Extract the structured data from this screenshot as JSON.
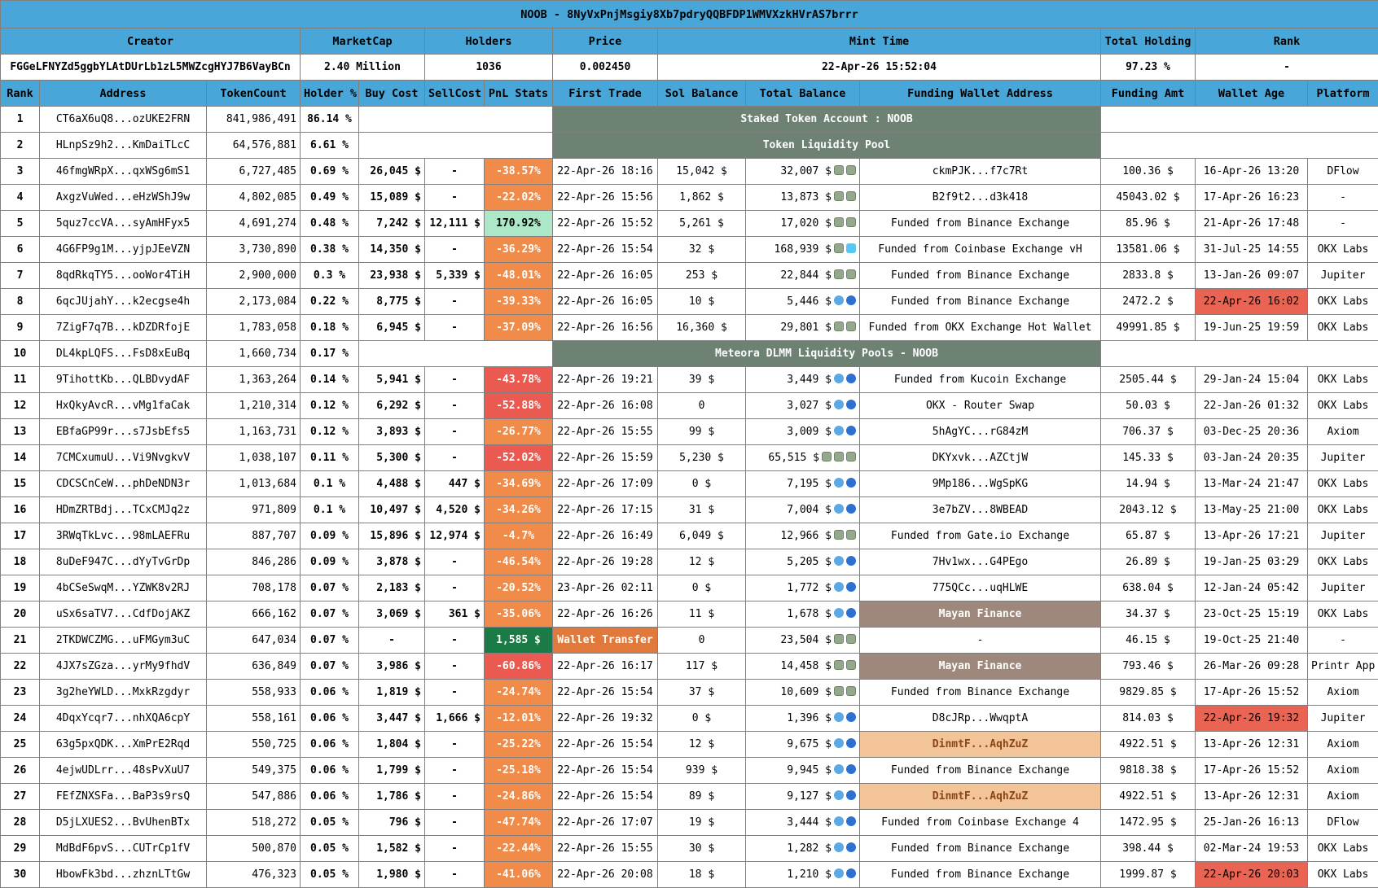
{
  "title": "NOOB - 8NyVxPnjMsgiy8Xb7pdryQQBFDP1WMVXzkHVrAS7brrr",
  "summary": {
    "headers": [
      "Creator",
      "MarketCap",
      "Holders",
      "Price",
      "Mint Time",
      "Total Holding",
      "Rank"
    ],
    "values": [
      "FGGeLFNYZd5ggbYLAtDUrLb1zL5MWZcgHYJ7B6VayBCn",
      "2.40 Million",
      "1036",
      "0.002450",
      "22-Apr-26 15:52:04",
      "97.23 %",
      "-"
    ]
  },
  "columns": [
    "Rank",
    "Address",
    "TokenCount",
    "Holder %",
    "Buy Cost",
    "SellCost",
    "PnL Stats",
    "First Trade",
    "Sol Balance",
    "Total Balance",
    "Funding Wallet Address",
    "Funding Amt",
    "Wallet Age",
    "Platform"
  ],
  "colors": {
    "header_blue": "#48a6d8",
    "section_green": "#6e8274",
    "pnl_orange": "#f08b49",
    "pnl_red": "#eb5a50",
    "pnl_green_light": "#ace8c8",
    "pnl_green_dark": "#1a7b46",
    "transfer_orange": "#e0793b",
    "wallet_brown": "#9e887b",
    "wallet_tan": "#f3c497",
    "age_red": "#ea6454"
  },
  "icon_legend": {
    "cash": "cash-note-icon",
    "fish": "fish-icon",
    "whale": "whale-icon",
    "ice": "ice-cube-icon"
  },
  "rows": [
    {
      "rank": "1",
      "address": "CT6aX6uQ8...ozUKE2FRN",
      "tokens": "841,986,491",
      "pct": "86.14 %",
      "section": "Staked Token Account : NOOB"
    },
    {
      "rank": "2",
      "address": "HLnpSz9h2...KmDaiTLcC",
      "tokens": "64,576,881",
      "pct": "6.61 %",
      "section": "Token Liquidity Pool"
    },
    {
      "rank": "3",
      "address": "46fmgWRpX...qxWSg6mS1",
      "tokens": "6,727,485",
      "pct": "0.69 %",
      "buy": "26,045 $",
      "sell": "-",
      "pnl": "-38.57%",
      "pnl_style": "orange",
      "trade": "22-Apr-26 18:16",
      "sol": "15,042 $",
      "total": "32,007 $",
      "icons": [
        "cash",
        "cash"
      ],
      "wallet": "ckmPJK...f7c7Rt",
      "amt": "100.36 $",
      "age": "16-Apr-26 13:20",
      "platform": "DFlow"
    },
    {
      "rank": "4",
      "address": "AxgzVuWed...eHzWShJ9w",
      "tokens": "4,802,085",
      "pct": "0.49 %",
      "buy": "15,089 $",
      "sell": "-",
      "pnl": "-22.02%",
      "pnl_style": "orange",
      "trade": "22-Apr-26 15:56",
      "sol": "1,862 $",
      "total": "13,873 $",
      "icons": [
        "cash",
        "cash"
      ],
      "wallet": "B2f9t2...d3k418",
      "amt": "45043.02 $",
      "age": "17-Apr-26 16:23",
      "platform": "-"
    },
    {
      "rank": "5",
      "address": "5quz7ccVA...syAmHFyx5",
      "tokens": "4,691,274",
      "pct": "0.48 %",
      "buy": "7,242 $",
      "sell": "12,111 $",
      "pnl": "170.92%",
      "pnl_style": "green-light",
      "trade": "22-Apr-26 15:52",
      "sol": "5,261 $",
      "total": "17,020 $",
      "icons": [
        "cash",
        "cash"
      ],
      "wallet": "Funded from Binance Exchange",
      "amt": "85.96 $",
      "age": "21-Apr-26 17:48",
      "platform": "-"
    },
    {
      "rank": "6",
      "address": "4G6FP9g1M...yjpJEeVZN",
      "tokens": "3,730,890",
      "pct": "0.38 %",
      "buy": "14,350 $",
      "sell": "-",
      "pnl": "-36.29%",
      "pnl_style": "orange",
      "trade": "22-Apr-26 15:54",
      "sol": "32 $",
      "total": "168,939 $",
      "icons": [
        "cash",
        "ice"
      ],
      "wallet": "Funded from Coinbase Exchange vH",
      "amt": "13581.06 $",
      "age": "31-Jul-25 14:55",
      "platform": "OKX Labs"
    },
    {
      "rank": "7",
      "address": "8qdRkqTY5...ooWor4TiH",
      "tokens": "2,900,000",
      "pct": "0.3 %",
      "buy": "23,938 $",
      "sell": "5,339 $",
      "pnl": "-48.01%",
      "pnl_style": "orange",
      "trade": "22-Apr-26 16:05",
      "sol": "253 $",
      "total": "22,844 $",
      "icons": [
        "cash",
        "cash"
      ],
      "wallet": "Funded from Binance Exchange",
      "amt": "2833.8 $",
      "age": "13-Jan-26 09:07",
      "platform": "Jupiter"
    },
    {
      "rank": "8",
      "address": "6qcJUjahY...k2ecgse4h",
      "tokens": "2,173,084",
      "pct": "0.22 %",
      "buy": "8,775 $",
      "sell": "-",
      "pnl": "-39.33%",
      "pnl_style": "orange",
      "trade": "22-Apr-26 16:05",
      "sol": "10 $",
      "total": "5,446 $",
      "icons": [
        "fish",
        "whale"
      ],
      "wallet": "Funded from Binance Exchange",
      "amt": "2472.2 $",
      "age": "22-Apr-26 16:02",
      "age_style": "red",
      "platform": "OKX Labs"
    },
    {
      "rank": "9",
      "address": "7ZigF7q7B...kDZDRfojE",
      "tokens": "1,783,058",
      "pct": "0.18 %",
      "buy": "6,945 $",
      "sell": "-",
      "pnl": "-37.09%",
      "pnl_style": "orange",
      "trade": "22-Apr-26 16:56",
      "sol": "16,360 $",
      "total": "29,801 $",
      "icons": [
        "cash",
        "cash"
      ],
      "wallet": "Funded from OKX Exchange Hot Wallet",
      "amt": "49991.85 $",
      "age": "19-Jun-25 19:59",
      "platform": "OKX Labs"
    },
    {
      "rank": "10",
      "address": "DL4kpLQFS...FsD8xEuBq",
      "tokens": "1,660,734",
      "pct": "0.17 %",
      "section": "Meteora DLMM Liquidity Pools - NOOB"
    },
    {
      "rank": "11",
      "address": "9TihottKb...QLBDvydAF",
      "tokens": "1,363,264",
      "pct": "0.14 %",
      "buy": "5,941 $",
      "sell": "-",
      "pnl": "-43.78%",
      "pnl_style": "red",
      "trade": "22-Apr-26 19:21",
      "sol": "39 $",
      "total": "3,449 $",
      "icons": [
        "fish",
        "whale"
      ],
      "wallet": "Funded from Kucoin Exchange",
      "amt": "2505.44 $",
      "age": "29-Jan-24 15:04",
      "platform": "OKX Labs"
    },
    {
      "rank": "12",
      "address": "HxQkyAvcR...vMg1faCak",
      "tokens": "1,210,314",
      "pct": "0.12 %",
      "buy": "6,292 $",
      "sell": "-",
      "pnl": "-52.88%",
      "pnl_style": "red",
      "trade": "22-Apr-26 16:08",
      "sol": "0",
      "total": "3,027 $",
      "icons": [
        "fish",
        "whale"
      ],
      "wallet": "OKX - Router Swap",
      "amt": "50.03 $",
      "age": "22-Jan-26 01:32",
      "platform": "OKX Labs"
    },
    {
      "rank": "13",
      "address": "EBfaGP99r...s7JsbEfs5",
      "tokens": "1,163,731",
      "pct": "0.12 %",
      "buy": "3,893 $",
      "sell": "-",
      "pnl": "-26.77%",
      "pnl_style": "orange",
      "trade": "22-Apr-26 15:55",
      "sol": "99 $",
      "total": "3,009 $",
      "icons": [
        "fish",
        "whale"
      ],
      "wallet": "5hAgYC...rG84zM",
      "amt": "706.37 $",
      "age": "03-Dec-25 20:36",
      "platform": "Axiom"
    },
    {
      "rank": "14",
      "address": "7CMCxumuU...Vi9NvgkvV",
      "tokens": "1,038,107",
      "pct": "0.11 %",
      "buy": "5,300 $",
      "sell": "-",
      "pnl": "-52.02%",
      "pnl_style": "red",
      "trade": "22-Apr-26 15:59",
      "sol": "5,230 $",
      "total": "65,515 $",
      "icons": [
        "cash",
        "cash",
        "cash"
      ],
      "wallet": "DKYxvk...AZCtjW",
      "amt": "145.33 $",
      "age": "03-Jan-24 20:35",
      "platform": "Jupiter"
    },
    {
      "rank": "15",
      "address": "CDCSCnCeW...phDeNDN3r",
      "tokens": "1,013,684",
      "pct": "0.1 %",
      "buy": "4,488 $",
      "sell": "447 $",
      "pnl": "-34.69%",
      "pnl_style": "orange",
      "trade": "22-Apr-26 17:09",
      "sol": "0 $",
      "total": "7,195 $",
      "icons": [
        "fish",
        "whale"
      ],
      "wallet": "9Mp186...WgSpKG",
      "amt": "14.94 $",
      "age": "13-Mar-24 21:47",
      "platform": "OKX Labs"
    },
    {
      "rank": "16",
      "address": "HDmZRTBdj...TCxCMJq2z",
      "tokens": "971,809",
      "pct": "0.1 %",
      "buy": "10,497 $",
      "sell": "4,520 $",
      "pnl": "-34.26%",
      "pnl_style": "orange",
      "trade": "22-Apr-26 17:15",
      "sol": "31 $",
      "total": "7,004 $",
      "icons": [
        "fish",
        "whale"
      ],
      "wallet": "3e7bZV...8WBEAD",
      "amt": "2043.12 $",
      "age": "13-May-25 21:00",
      "platform": "OKX Labs"
    },
    {
      "rank": "17",
      "address": "3RWqTkLvc...98mLAEFRu",
      "tokens": "887,707",
      "pct": "0.09 %",
      "buy": "15,896 $",
      "sell": "12,974 $",
      "pnl": "-4.7%",
      "pnl_style": "orange",
      "trade": "22-Apr-26 16:49",
      "sol": "6,049 $",
      "total": "12,966 $",
      "icons": [
        "cash",
        "cash"
      ],
      "wallet": "Funded from Gate.io Exchange",
      "amt": "65.87 $",
      "age": "13-Apr-26 17:21",
      "platform": "Jupiter"
    },
    {
      "rank": "18",
      "address": "8uDeF947C...dYyTvGrDp",
      "tokens": "846,286",
      "pct": "0.09 %",
      "buy": "3,878 $",
      "sell": "-",
      "pnl": "-46.54%",
      "pnl_style": "orange",
      "trade": "22-Apr-26 19:28",
      "sol": "12 $",
      "total": "5,205 $",
      "icons": [
        "fish",
        "whale"
      ],
      "wallet": "7Hv1wx...G4PEgo",
      "amt": "26.89 $",
      "age": "19-Jan-25 03:29",
      "platform": "OKX Labs"
    },
    {
      "rank": "19",
      "address": "4bCSeSwqM...YZWK8v2RJ",
      "tokens": "708,178",
      "pct": "0.07 %",
      "buy": "2,183 $",
      "sell": "-",
      "pnl": "-20.52%",
      "pnl_style": "orange",
      "trade": "23-Apr-26 02:11",
      "sol": "0 $",
      "total": "1,772 $",
      "icons": [
        "fish",
        "whale"
      ],
      "wallet": "775QCc...uqHLWE",
      "amt": "638.04 $",
      "age": "12-Jan-24 05:42",
      "platform": "Jupiter"
    },
    {
      "rank": "20",
      "address": "uSx6saTV7...CdfDojAKZ",
      "tokens": "666,162",
      "pct": "0.07 %",
      "buy": "3,069 $",
      "sell": "361 $",
      "pnl": "-35.06%",
      "pnl_style": "orange",
      "trade": "22-Apr-26 16:26",
      "sol": "11 $",
      "total": "1,678 $",
      "icons": [
        "fish",
        "whale"
      ],
      "wallet": "Mayan Finance",
      "wallet_style": "brown",
      "amt": "34.37 $",
      "age": "23-Oct-25 15:19",
      "platform": "OKX Labs"
    },
    {
      "rank": "21",
      "address": "2TKDWCZMG...uFMGym3uC",
      "tokens": "647,034",
      "pct": "0.07 %",
      "buy": "-",
      "sell": "-",
      "pnl": "1,585 $",
      "pnl_style": "green-dark",
      "trade": "Wallet Transfer",
      "trade_style": "orange",
      "sol": "0",
      "total": "23,504 $",
      "icons": [
        "cash",
        "cash"
      ],
      "wallet": "-",
      "amt": "46.15 $",
      "age": "19-Oct-25 21:40",
      "platform": "-"
    },
    {
      "rank": "22",
      "address": "4JX7sZGza...yrMy9fhdV",
      "tokens": "636,849",
      "pct": "0.07 %",
      "buy": "3,986 $",
      "sell": "-",
      "pnl": "-60.86%",
      "pnl_style": "red",
      "trade": "22-Apr-26 16:17",
      "sol": "117 $",
      "total": "14,458 $",
      "icons": [
        "cash",
        "cash"
      ],
      "wallet": "Mayan Finance",
      "wallet_style": "brown",
      "amt": "793.46 $",
      "age": "26-Mar-26 09:28",
      "platform": "Printr App"
    },
    {
      "rank": "23",
      "address": "3g2heYWLD...MxkRzgdyr",
      "tokens": "558,933",
      "pct": "0.06 %",
      "buy": "1,819 $",
      "sell": "-",
      "pnl": "-24.74%",
      "pnl_style": "orange",
      "trade": "22-Apr-26 15:54",
      "sol": "37 $",
      "total": "10,609 $",
      "icons": [
        "cash",
        "cash"
      ],
      "wallet": "Funded from Binance Exchange",
      "amt": "9829.85 $",
      "age": "17-Apr-26 15:52",
      "platform": "Axiom"
    },
    {
      "rank": "24",
      "address": "4DqxYcqr7...nhXQA6cpY",
      "tokens": "558,161",
      "pct": "0.06 %",
      "buy": "3,447 $",
      "sell": "1,666 $",
      "pnl": "-12.01%",
      "pnl_style": "orange",
      "trade": "22-Apr-26 19:32",
      "sol": "0 $",
      "total": "1,396 $",
      "icons": [
        "fish",
        "whale"
      ],
      "wallet": "D8cJRp...WwqptA",
      "amt": "814.03 $",
      "age": "22-Apr-26 19:32",
      "age_style": "red",
      "platform": "Jupiter"
    },
    {
      "rank": "25",
      "address": "63g5pxQDK...XmPrE2Rqd",
      "tokens": "550,725",
      "pct": "0.06 %",
      "buy": "1,804 $",
      "sell": "-",
      "pnl": "-25.22%",
      "pnl_style": "orange",
      "trade": "22-Apr-26 15:54",
      "sol": "12 $",
      "total": "9,675 $",
      "icons": [
        "fish",
        "whale"
      ],
      "wallet": "DinmtF...AqhZuZ",
      "wallet_style": "tan",
      "amt": "4922.51 $",
      "age": "13-Apr-26 12:31",
      "platform": "Axiom"
    },
    {
      "rank": "26",
      "address": "4ejwUDLrr...48sPvXuU7",
      "tokens": "549,375",
      "pct": "0.06 %",
      "buy": "1,799 $",
      "sell": "-",
      "pnl": "-25.18%",
      "pnl_style": "orange",
      "trade": "22-Apr-26 15:54",
      "sol": "939 $",
      "total": "9,945 $",
      "icons": [
        "fish",
        "whale"
      ],
      "wallet": "Funded from Binance Exchange",
      "amt": "9818.38 $",
      "age": "17-Apr-26 15:52",
      "platform": "Axiom"
    },
    {
      "rank": "27",
      "address": "FEfZNXSFa...BaP3s9rsQ",
      "tokens": "547,886",
      "pct": "0.06 %",
      "buy": "1,786 $",
      "sell": "-",
      "pnl": "-24.86%",
      "pnl_style": "orange",
      "trade": "22-Apr-26 15:54",
      "sol": "89 $",
      "total": "9,127 $",
      "icons": [
        "fish",
        "whale"
      ],
      "wallet": "DinmtF...AqhZuZ",
      "wallet_style": "tan",
      "amt": "4922.51 $",
      "age": "13-Apr-26 12:31",
      "platform": "Axiom"
    },
    {
      "rank": "28",
      "address": "D5jLXUES2...BvUhenBTx",
      "tokens": "518,272",
      "pct": "0.05 %",
      "buy": "796 $",
      "sell": "-",
      "pnl": "-47.74%",
      "pnl_style": "orange",
      "trade": "22-Apr-26 17:07",
      "sol": "19 $",
      "total": "3,444 $",
      "icons": [
        "fish",
        "whale"
      ],
      "wallet": "Funded from Coinbase Exchange 4",
      "amt": "1472.95 $",
      "age": "25-Jan-26 16:13",
      "platform": "DFlow"
    },
    {
      "rank": "29",
      "address": "MdBdF6pvS...CUTrCp1fV",
      "tokens": "500,870",
      "pct": "0.05 %",
      "buy": "1,582 $",
      "sell": "-",
      "pnl": "-22.44%",
      "pnl_style": "orange",
      "trade": "22-Apr-26 15:55",
      "sol": "30 $",
      "total": "1,282 $",
      "icons": [
        "fish",
        "whale"
      ],
      "wallet": "Funded from Binance Exchange",
      "amt": "398.44 $",
      "age": "02-Mar-24 19:53",
      "platform": "OKX Labs"
    },
    {
      "rank": "30",
      "address": "HbowFk3bd...zhznLTtGw",
      "tokens": "476,323",
      "pct": "0.05 %",
      "buy": "1,980 $",
      "sell": "-",
      "pnl": "-41.06%",
      "pnl_style": "orange",
      "trade": "22-Apr-26 20:08",
      "sol": "18 $",
      "total": "1,210 $",
      "icons": [
        "fish",
        "whale"
      ],
      "wallet": "Funded from Binance Exchange",
      "amt": "1999.87 $",
      "age": "22-Apr-26 20:03",
      "age_style": "red",
      "platform": "OKX Labs"
    }
  ]
}
